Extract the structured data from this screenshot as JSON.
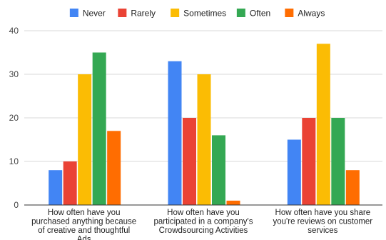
{
  "chart_data": {
    "type": "bar",
    "title": "",
    "xlabel": "",
    "ylabel": "",
    "ylim": [
      0,
      40
    ],
    "yticks": [
      0,
      10,
      20,
      30,
      40
    ],
    "grid": true,
    "legend_position": "top",
    "categories": [
      [
        "How often have you",
        "purchased anything because",
        "of creative and thoughtful",
        "Ads"
      ],
      [
        "How often have you",
        "participated in a company's",
        "Crowdsourcing Activities"
      ],
      [
        "How often have you share",
        "you're reviews on customer",
        "services"
      ]
    ],
    "series": [
      {
        "name": "Never",
        "color": "#4285F4",
        "values": [
          8,
          33,
          15
        ]
      },
      {
        "name": "Rarely",
        "color": "#EA4335",
        "values": [
          10,
          20,
          20
        ]
      },
      {
        "name": "Sometimes",
        "color": "#FBBC04",
        "values": [
          30,
          30,
          37
        ]
      },
      {
        "name": "Often",
        "color": "#34A853",
        "values": [
          35,
          16,
          20
        ]
      },
      {
        "name": "Always",
        "color": "#FF6D01",
        "values": [
          17,
          1,
          8
        ]
      }
    ]
  }
}
